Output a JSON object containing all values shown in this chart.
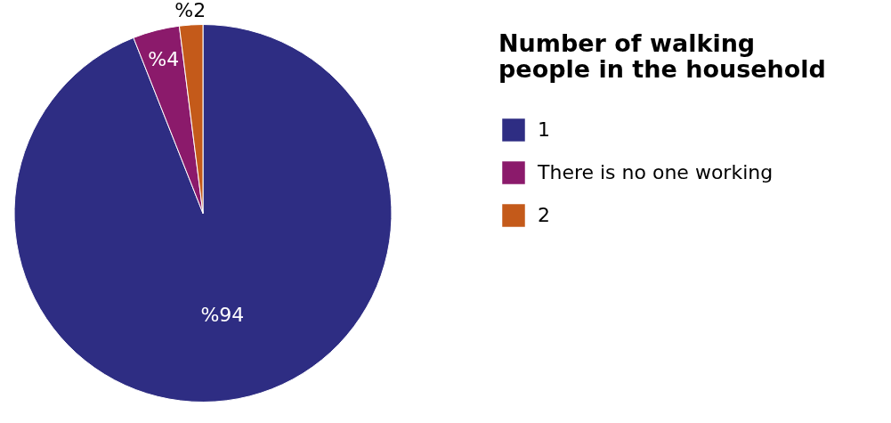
{
  "chart_data": {
    "type": "pie",
    "legend_title": "Number of walking people in the household",
    "categories": [
      "1",
      "There is no one working",
      "2"
    ],
    "values": [
      94,
      4,
      2
    ],
    "colors": [
      "#2e2d83",
      "#8b1a6b",
      "#c45a1a"
    ],
    "value_labels": [
      "%94",
      "%4",
      "%2"
    ],
    "legend": "right"
  }
}
